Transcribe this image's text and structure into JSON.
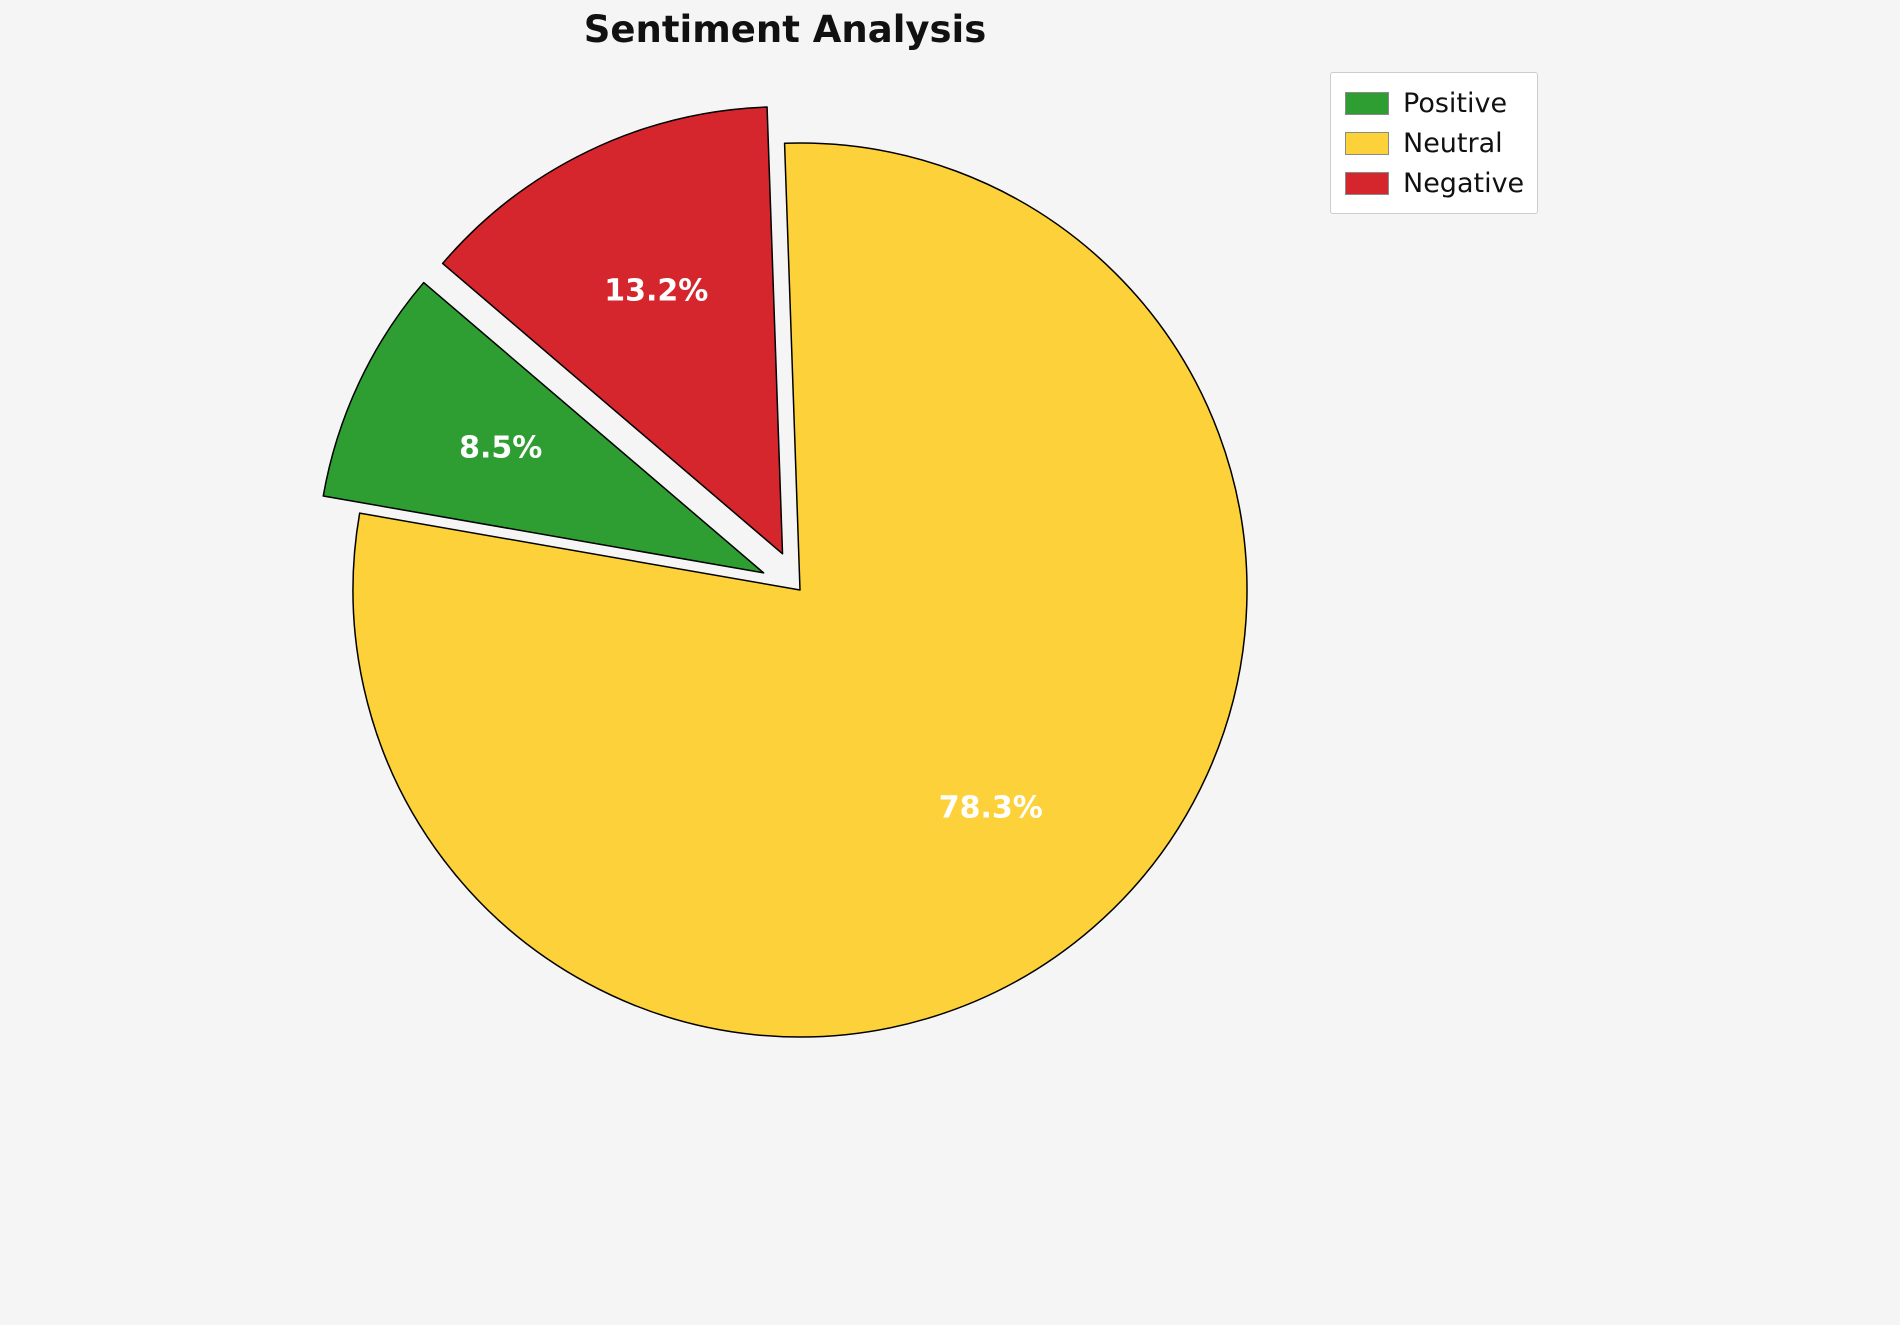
{
  "title": "Sentiment Analysis",
  "legend": {
    "items": [
      {
        "label": "Positive",
        "color": "#2E9E32"
      },
      {
        "label": "Neutral",
        "color": "#FDD13A"
      },
      {
        "label": "Negative",
        "color": "#D4262C"
      }
    ]
  },
  "chart_data": {
    "type": "pie",
    "title": "Sentiment Analysis",
    "labels": [
      "Positive",
      "Neutral",
      "Negative"
    ],
    "values": [
      8.5,
      78.3,
      13.2
    ],
    "percent_labels": [
      "8.5%",
      "78.3%",
      "13.2%"
    ],
    "colors": [
      "#2E9E32",
      "#FDD13A",
      "#D4262C"
    ],
    "explode": [
      0.09,
      0,
      0.09
    ],
    "start_angle": 139.5,
    "direction": "counterclockwise",
    "edge_color": "#000000",
    "edge_width": 1.5,
    "pct_label_color": "#ffffff",
    "background": "#F5F5F5",
    "legend_position": "top-right",
    "center": [
      800,
      590
    ],
    "radius": 447
  }
}
